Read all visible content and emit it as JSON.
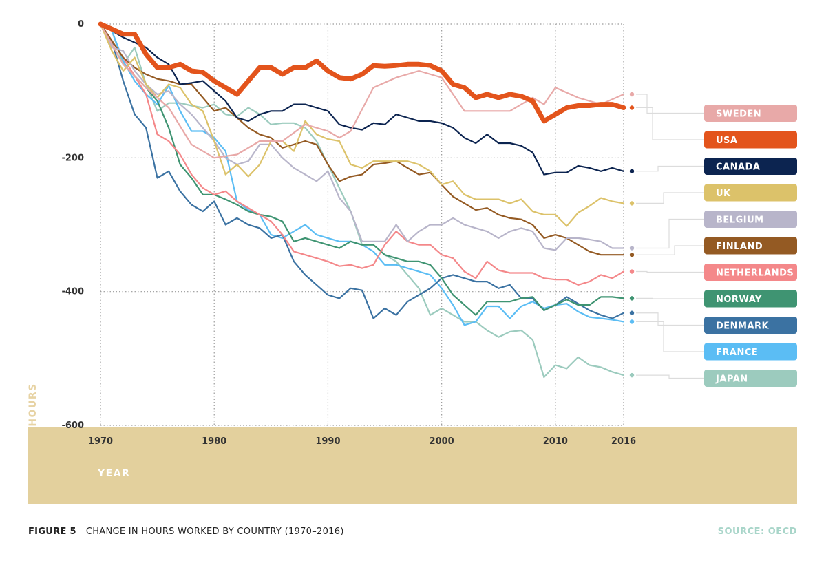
{
  "figure": {
    "label": "FIGURE 5",
    "caption": "CHANGE IN HOURS WORKED BY COUNTRY (1970–2016)",
    "source": "SOURCE: OECD"
  },
  "chart_data": {
    "type": "line",
    "title": "",
    "xlabel": "YEAR",
    "ylabel": "HOURS",
    "xlim": [
      1970,
      2016
    ],
    "ylim": [
      -600,
      0
    ],
    "x_ticks": [
      1970,
      1980,
      1990,
      2000,
      2010,
      2016
    ],
    "y_ticks": [
      0,
      -200,
      -400,
      -600
    ],
    "grid": true,
    "legend": "right",
    "series": [
      {
        "name": "SWEDEN",
        "color": "#e8a9a8",
        "x": [
          1970,
          1972,
          1974,
          1976,
          1978,
          1980,
          1982,
          1984,
          1986,
          1988,
          1990,
          1991,
          1992,
          1994,
          1996,
          1998,
          2000,
          2002,
          2004,
          2006,
          2008,
          2009,
          2010,
          2012,
          2014,
          2016
        ],
        "y": [
          0,
          -60,
          -95,
          -125,
          -180,
          -200,
          -195,
          -175,
          -175,
          -150,
          -160,
          -170,
          -160,
          -95,
          -80,
          -70,
          -80,
          -130,
          -130,
          -130,
          -110,
          -120,
          -95,
          -110,
          -120,
          -105
        ]
      },
      {
        "name": "USA",
        "color": "#e3541c",
        "x": [
          1970,
          1972,
          1973,
          1974,
          1975,
          1976,
          1977,
          1978,
          1979,
          1980,
          1981,
          1982,
          1983,
          1984,
          1985,
          1986,
          1987,
          1988,
          1989,
          1990,
          1991,
          1992,
          1993,
          1994,
          1995,
          1996,
          1997,
          1998,
          1999,
          2000,
          2001,
          2002,
          2003,
          2004,
          2005,
          2006,
          2007,
          2008,
          2009,
          2010,
          2011,
          2012,
          2013,
          2014,
          2015,
          2016
        ],
        "y": [
          0,
          -15,
          -15,
          -45,
          -65,
          -65,
          -60,
          -70,
          -72,
          -85,
          -95,
          -105,
          -85,
          -65,
          -65,
          -75,
          -65,
          -65,
          -55,
          -70,
          -80,
          -82,
          -75,
          -62,
          -63,
          -62,
          -60,
          -60,
          -62,
          -70,
          -90,
          -95,
          -110,
          -105,
          -110,
          -105,
          -108,
          -115,
          -145,
          -135,
          -125,
          -122,
          -122,
          -120,
          -120,
          -125
        ]
      },
      {
        "name": "CANADA",
        "color": "#0c2450",
        "x": [
          1970,
          1972,
          1974,
          1975,
          1976,
          1977,
          1978,
          1979,
          1980,
          1981,
          1982,
          1983,
          1984,
          1985,
          1986,
          1987,
          1988,
          1989,
          1990,
          1991,
          1992,
          1993,
          1994,
          1995,
          1996,
          1997,
          1998,
          1999,
          2000,
          2001,
          2002,
          2003,
          2004,
          2005,
          2006,
          2007,
          2008,
          2009,
          2010,
          2011,
          2012,
          2013,
          2014,
          2015,
          2016
        ],
        "y": [
          0,
          -20,
          -35,
          -50,
          -60,
          -90,
          -88,
          -85,
          -100,
          -115,
          -140,
          -145,
          -135,
          -130,
          -130,
          -120,
          -120,
          -125,
          -130,
          -150,
          -155,
          -158,
          -148,
          -150,
          -135,
          -140,
          -145,
          -145,
          -148,
          -155,
          -170,
          -178,
          -165,
          -178,
          -178,
          -182,
          -192,
          -225,
          -222,
          -222,
          -212,
          -215,
          -220,
          -215,
          -220
        ]
      },
      {
        "name": "UK",
        "color": "#dcc26a",
        "x": [
          1970,
          1971,
          1972,
          1973,
          1974,
          1975,
          1976,
          1977,
          1978,
          1979,
          1980,
          1981,
          1982,
          1983,
          1984,
          1985,
          1986,
          1987,
          1988,
          1989,
          1990,
          1991,
          1992,
          1993,
          1994,
          1995,
          1996,
          1997,
          1998,
          1999,
          2000,
          2001,
          2002,
          2003,
          2004,
          2005,
          2006,
          2007,
          2008,
          2009,
          2010,
          2011,
          2012,
          2013,
          2014,
          2015,
          2016
        ],
        "y": [
          0,
          -40,
          -70,
          -50,
          -90,
          -110,
          -90,
          -95,
          -120,
          -130,
          -175,
          -225,
          -210,
          -228,
          -210,
          -175,
          -175,
          -190,
          -145,
          -165,
          -172,
          -175,
          -210,
          -215,
          -205,
          -205,
          -205,
          -205,
          -210,
          -220,
          -240,
          -235,
          -255,
          -262,
          -262,
          -262,
          -268,
          -262,
          -280,
          -285,
          -285,
          -302,
          -282,
          -272,
          -260,
          -265,
          -268
        ]
      },
      {
        "name": "BELGIUM",
        "color": "#b8b5ca",
        "x": [
          1970,
          1971,
          1972,
          1973,
          1974,
          1975,
          1976,
          1977,
          1978,
          1979,
          1980,
          1981,
          1982,
          1983,
          1984,
          1985,
          1986,
          1987,
          1988,
          1989,
          1990,
          1991,
          1992,
          1993,
          1994,
          1995,
          1996,
          1997,
          1998,
          1999,
          2000,
          2001,
          2002,
          2003,
          2004,
          2005,
          2006,
          2007,
          2008,
          2009,
          2010,
          2011,
          2012,
          2013,
          2014,
          2015,
          2016
        ],
        "y": [
          0,
          -35,
          -40,
          -70,
          -90,
          -105,
          -100,
          -120,
          -135,
          -155,
          -175,
          -200,
          -210,
          -205,
          -180,
          -180,
          -200,
          -215,
          -225,
          -235,
          -220,
          -260,
          -280,
          -325,
          -325,
          -325,
          -300,
          -325,
          -310,
          -300,
          -300,
          -290,
          -300,
          -305,
          -310,
          -320,
          -310,
          -305,
          -310,
          -335,
          -338,
          -320,
          -320,
          -322,
          -325,
          -335,
          -335
        ]
      },
      {
        "name": "FINLAND",
        "color": "#945a23",
        "x": [
          1970,
          1971,
          1972,
          1973,
          1974,
          1975,
          1976,
          1977,
          1978,
          1979,
          1980,
          1981,
          1982,
          1983,
          1984,
          1985,
          1986,
          1987,
          1988,
          1989,
          1990,
          1991,
          1992,
          1993,
          1994,
          1995,
          1996,
          1997,
          1998,
          1999,
          2000,
          2001,
          2002,
          2003,
          2004,
          2005,
          2006,
          2007,
          2008,
          2009,
          2010,
          2011,
          2012,
          2013,
          2014,
          2015,
          2016
        ],
        "y": [
          0,
          -25,
          -50,
          -65,
          -75,
          -82,
          -85,
          -90,
          -90,
          -110,
          -130,
          -125,
          -140,
          -155,
          -165,
          -170,
          -185,
          -180,
          -175,
          -180,
          -210,
          -235,
          -228,
          -225,
          -210,
          -208,
          -205,
          -215,
          -225,
          -222,
          -240,
          -258,
          -268,
          -278,
          -275,
          -285,
          -290,
          -292,
          -300,
          -320,
          -315,
          -320,
          -330,
          -340,
          -345,
          -345,
          -345
        ]
      },
      {
        "name": "NETHERLANDS",
        "color": "#f4888a",
        "x": [
          1970,
          1972,
          1974,
          1975,
          1976,
          1977,
          1978,
          1979,
          1980,
          1981,
          1982,
          1983,
          1984,
          1985,
          1986,
          1987,
          1988,
          1989,
          1990,
          1991,
          1992,
          1993,
          1994,
          1995,
          1996,
          1997,
          1998,
          1999,
          2000,
          2001,
          2002,
          2003,
          2004,
          2005,
          2006,
          2007,
          2008,
          2009,
          2010,
          2011,
          2012,
          2013,
          2014,
          2015,
          2016
        ],
        "y": [
          0,
          -50,
          -105,
          -165,
          -175,
          -195,
          -225,
          -245,
          -255,
          -250,
          -265,
          -275,
          -285,
          -295,
          -315,
          -340,
          -345,
          -350,
          -355,
          -362,
          -360,
          -365,
          -360,
          -330,
          -310,
          -325,
          -330,
          -330,
          -345,
          -350,
          -370,
          -380,
          -355,
          -368,
          -372,
          -372,
          -372,
          -380,
          -382,
          -382,
          -390,
          -385,
          -375,
          -380,
          -370
        ]
      },
      {
        "name": "NORWAY",
        "color": "#3f9472",
        "x": [
          1970,
          1972,
          1974,
          1975,
          1976,
          1977,
          1978,
          1979,
          1980,
          1981,
          1982,
          1983,
          1984,
          1985,
          1986,
          1987,
          1988,
          1989,
          1990,
          1991,
          1992,
          1993,
          1994,
          1995,
          1996,
          1997,
          1998,
          1999,
          2000,
          2001,
          2002,
          2003,
          2004,
          2005,
          2006,
          2007,
          2008,
          2009,
          2010,
          2011,
          2012,
          2013,
          2014,
          2015,
          2016
        ],
        "y": [
          0,
          -60,
          -95,
          -115,
          -155,
          -210,
          -230,
          -255,
          -255,
          -262,
          -270,
          -280,
          -285,
          -288,
          -295,
          -325,
          -320,
          -325,
          -330,
          -335,
          -325,
          -330,
          -330,
          -345,
          -350,
          -355,
          -355,
          -360,
          -380,
          -405,
          -420,
          -435,
          -415,
          -415,
          -415,
          -410,
          -408,
          -428,
          -420,
          -412,
          -420,
          -420,
          -408,
          -408,
          -410
        ]
      },
      {
        "name": "DENMARK",
        "color": "#3b72a2",
        "x": [
          1970,
          1971,
          1972,
          1973,
          1974,
          1975,
          1976,
          1977,
          1978,
          1979,
          1980,
          1981,
          1982,
          1983,
          1984,
          1985,
          1986,
          1987,
          1988,
          1989,
          1990,
          1991,
          1992,
          1993,
          1994,
          1995,
          1996,
          1997,
          1998,
          1999,
          2000,
          2001,
          2002,
          2003,
          2004,
          2005,
          2006,
          2007,
          2008,
          2009,
          2010,
          2011,
          2012,
          2013,
          2014,
          2015,
          2016
        ],
        "y": [
          0,
          -25,
          -85,
          -135,
          -155,
          -230,
          -220,
          -250,
          -270,
          -280,
          -265,
          -300,
          -290,
          -300,
          -305,
          -320,
          -315,
          -355,
          -375,
          -390,
          -405,
          -410,
          -395,
          -398,
          -440,
          -425,
          -435,
          -415,
          -405,
          -395,
          -380,
          -375,
          -380,
          -385,
          -385,
          -395,
          -390,
          -410,
          -410,
          -428,
          -420,
          -408,
          -418,
          -428,
          -435,
          -440,
          -432
        ]
      },
      {
        "name": "FRANCE",
        "color": "#5bbdf4",
        "x": [
          1970,
          1971,
          1972,
          1973,
          1974,
          1975,
          1976,
          1977,
          1978,
          1979,
          1980,
          1981,
          1982,
          1983,
          1984,
          1985,
          1986,
          1987,
          1988,
          1989,
          1990,
          1991,
          1992,
          1993,
          1994,
          1995,
          1996,
          1997,
          1998,
          1999,
          2000,
          2001,
          2002,
          2003,
          2004,
          2005,
          2006,
          2007,
          2008,
          2009,
          2010,
          2011,
          2012,
          2013,
          2014,
          2015,
          2016
        ],
        "y": [
          0,
          -10,
          -55,
          -85,
          -105,
          -120,
          -92,
          -130,
          -160,
          -160,
          -170,
          -190,
          -265,
          -278,
          -285,
          -315,
          -320,
          -310,
          -300,
          -315,
          -320,
          -325,
          -325,
          -330,
          -340,
          -360,
          -360,
          -365,
          -370,
          -375,
          -395,
          -420,
          -450,
          -445,
          -422,
          -422,
          -440,
          -422,
          -415,
          -425,
          -420,
          -418,
          -430,
          -438,
          -440,
          -442,
          -445
        ]
      },
      {
        "name": "JAPAN",
        "color": "#9ccbbe",
        "x": [
          1970,
          1971,
          1972,
          1973,
          1974,
          1975,
          1976,
          1977,
          1978,
          1979,
          1980,
          1981,
          1982,
          1983,
          1984,
          1985,
          1986,
          1987,
          1988,
          1989,
          1990,
          1991,
          1992,
          1993,
          1994,
          1995,
          1996,
          1997,
          1998,
          1999,
          2000,
          2001,
          2002,
          2003,
          2004,
          2005,
          2006,
          2007,
          2008,
          2009,
          2010,
          2011,
          2012,
          2013,
          2014,
          2015,
          2016
        ],
        "y": [
          0,
          -10,
          -60,
          -35,
          -90,
          -130,
          -118,
          -118,
          -122,
          -125,
          -120,
          -135,
          -138,
          -125,
          -135,
          -150,
          -148,
          -148,
          -155,
          -175,
          -210,
          -245,
          -280,
          -330,
          -330,
          -345,
          -355,
          -375,
          -395,
          -435,
          -425,
          -435,
          -445,
          -445,
          -458,
          -468,
          -460,
          -458,
          -472,
          -528,
          -510,
          -515,
          -498,
          -510,
          -513,
          -520,
          -525
        ]
      }
    ]
  }
}
